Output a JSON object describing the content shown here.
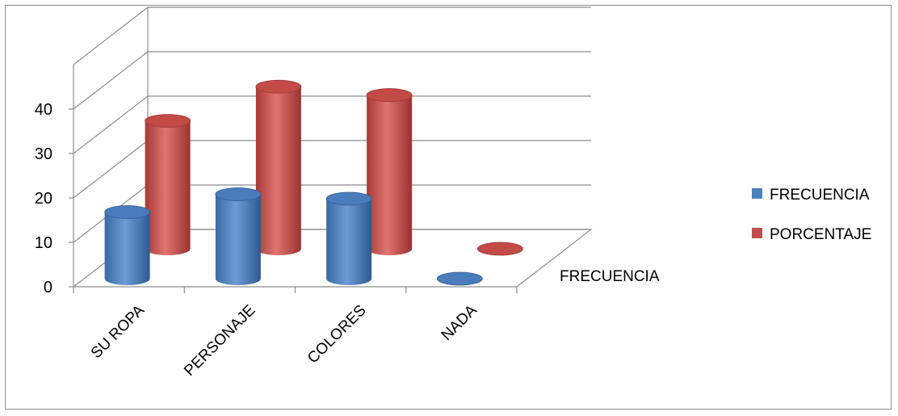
{
  "chart_data": {
    "type": "bar",
    "style": "3d-cylinder",
    "categories": [
      "SU ROPA",
      "PERSONAJE",
      "COLORES",
      "NADA"
    ],
    "series": [
      {
        "name": "FRECUENCIA",
        "values": [
          15,
          19,
          18,
          0
        ],
        "color": "#4f81bd"
      },
      {
        "name": "PORCENTAJE",
        "values": [
          28.8,
          36.5,
          34.6,
          0
        ],
        "color": "#c0504d"
      }
    ],
    "y_ticks": [
      "0",
      "10",
      "20",
      "30",
      "40"
    ],
    "ylim": [
      0,
      50
    ],
    "depth_label": "FRECUENCIA",
    "legend_position": "right",
    "grid": true
  }
}
